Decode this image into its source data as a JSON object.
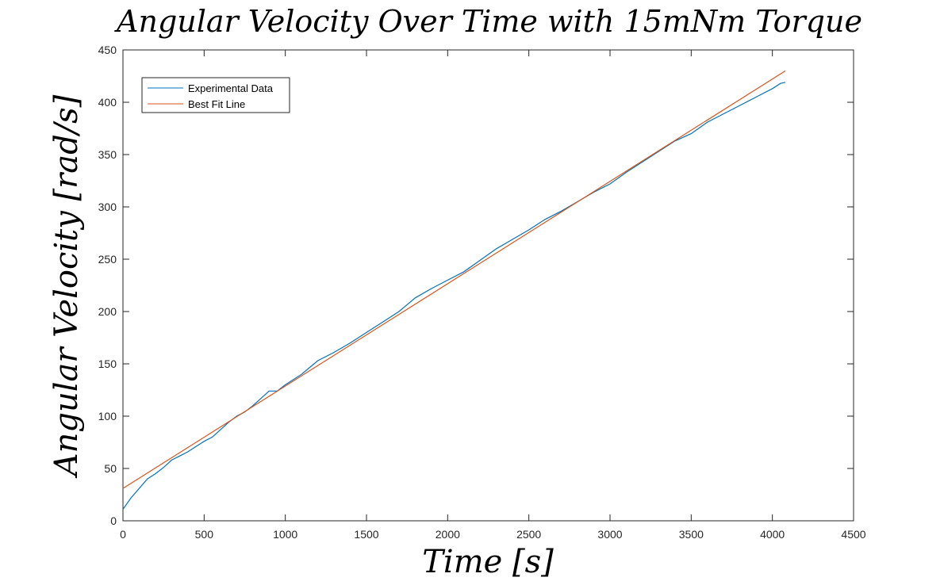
{
  "chart_data": {
    "type": "line",
    "title": "Angular Velocity Over Time with 15mNm Torque",
    "xlabel": "Time [s]",
    "ylabel": "Angular Velocity [rad/s]",
    "xlim": [
      0,
      4500
    ],
    "ylim": [
      0,
      450
    ],
    "xticks": [
      0,
      500,
      1000,
      1500,
      2000,
      2500,
      3000,
      3500,
      4000,
      4500
    ],
    "yticks": [
      0,
      50,
      100,
      150,
      200,
      250,
      300,
      350,
      400,
      450
    ],
    "grid": false,
    "legend_position": "top-left",
    "series": [
      {
        "name": "Experimental Data",
        "color": "#0072BD",
        "x": [
          0,
          50,
          100,
          150,
          200,
          250,
          300,
          350,
          400,
          450,
          500,
          550,
          600,
          650,
          700,
          750,
          800,
          850,
          900,
          950,
          1000,
          1100,
          1200,
          1300,
          1400,
          1500,
          1600,
          1700,
          1800,
          1900,
          2000,
          2100,
          2200,
          2300,
          2400,
          2500,
          2600,
          2700,
          2800,
          2900,
          2950,
          3000,
          3100,
          3200,
          3300,
          3400,
          3500,
          3600,
          3700,
          3800,
          3900,
          4000,
          4050,
          4080
        ],
        "y": [
          11,
          22,
          31,
          40,
          45,
          51,
          58,
          62,
          66,
          71,
          76,
          80,
          87,
          94,
          100,
          104,
          110,
          117,
          124,
          124,
          130,
          140,
          153,
          161,
          170,
          180,
          190,
          200,
          213,
          222,
          230,
          238,
          249,
          260,
          269,
          278,
          288,
          296,
          305,
          314,
          318,
          322,
          333,
          343,
          353,
          363,
          370,
          381,
          389,
          397,
          405,
          413,
          418,
          419
        ]
      },
      {
        "name": "Best Fit Line",
        "color": "#D95319",
        "x": [
          0,
          4080
        ],
        "y": [
          31,
          430
        ]
      }
    ]
  }
}
